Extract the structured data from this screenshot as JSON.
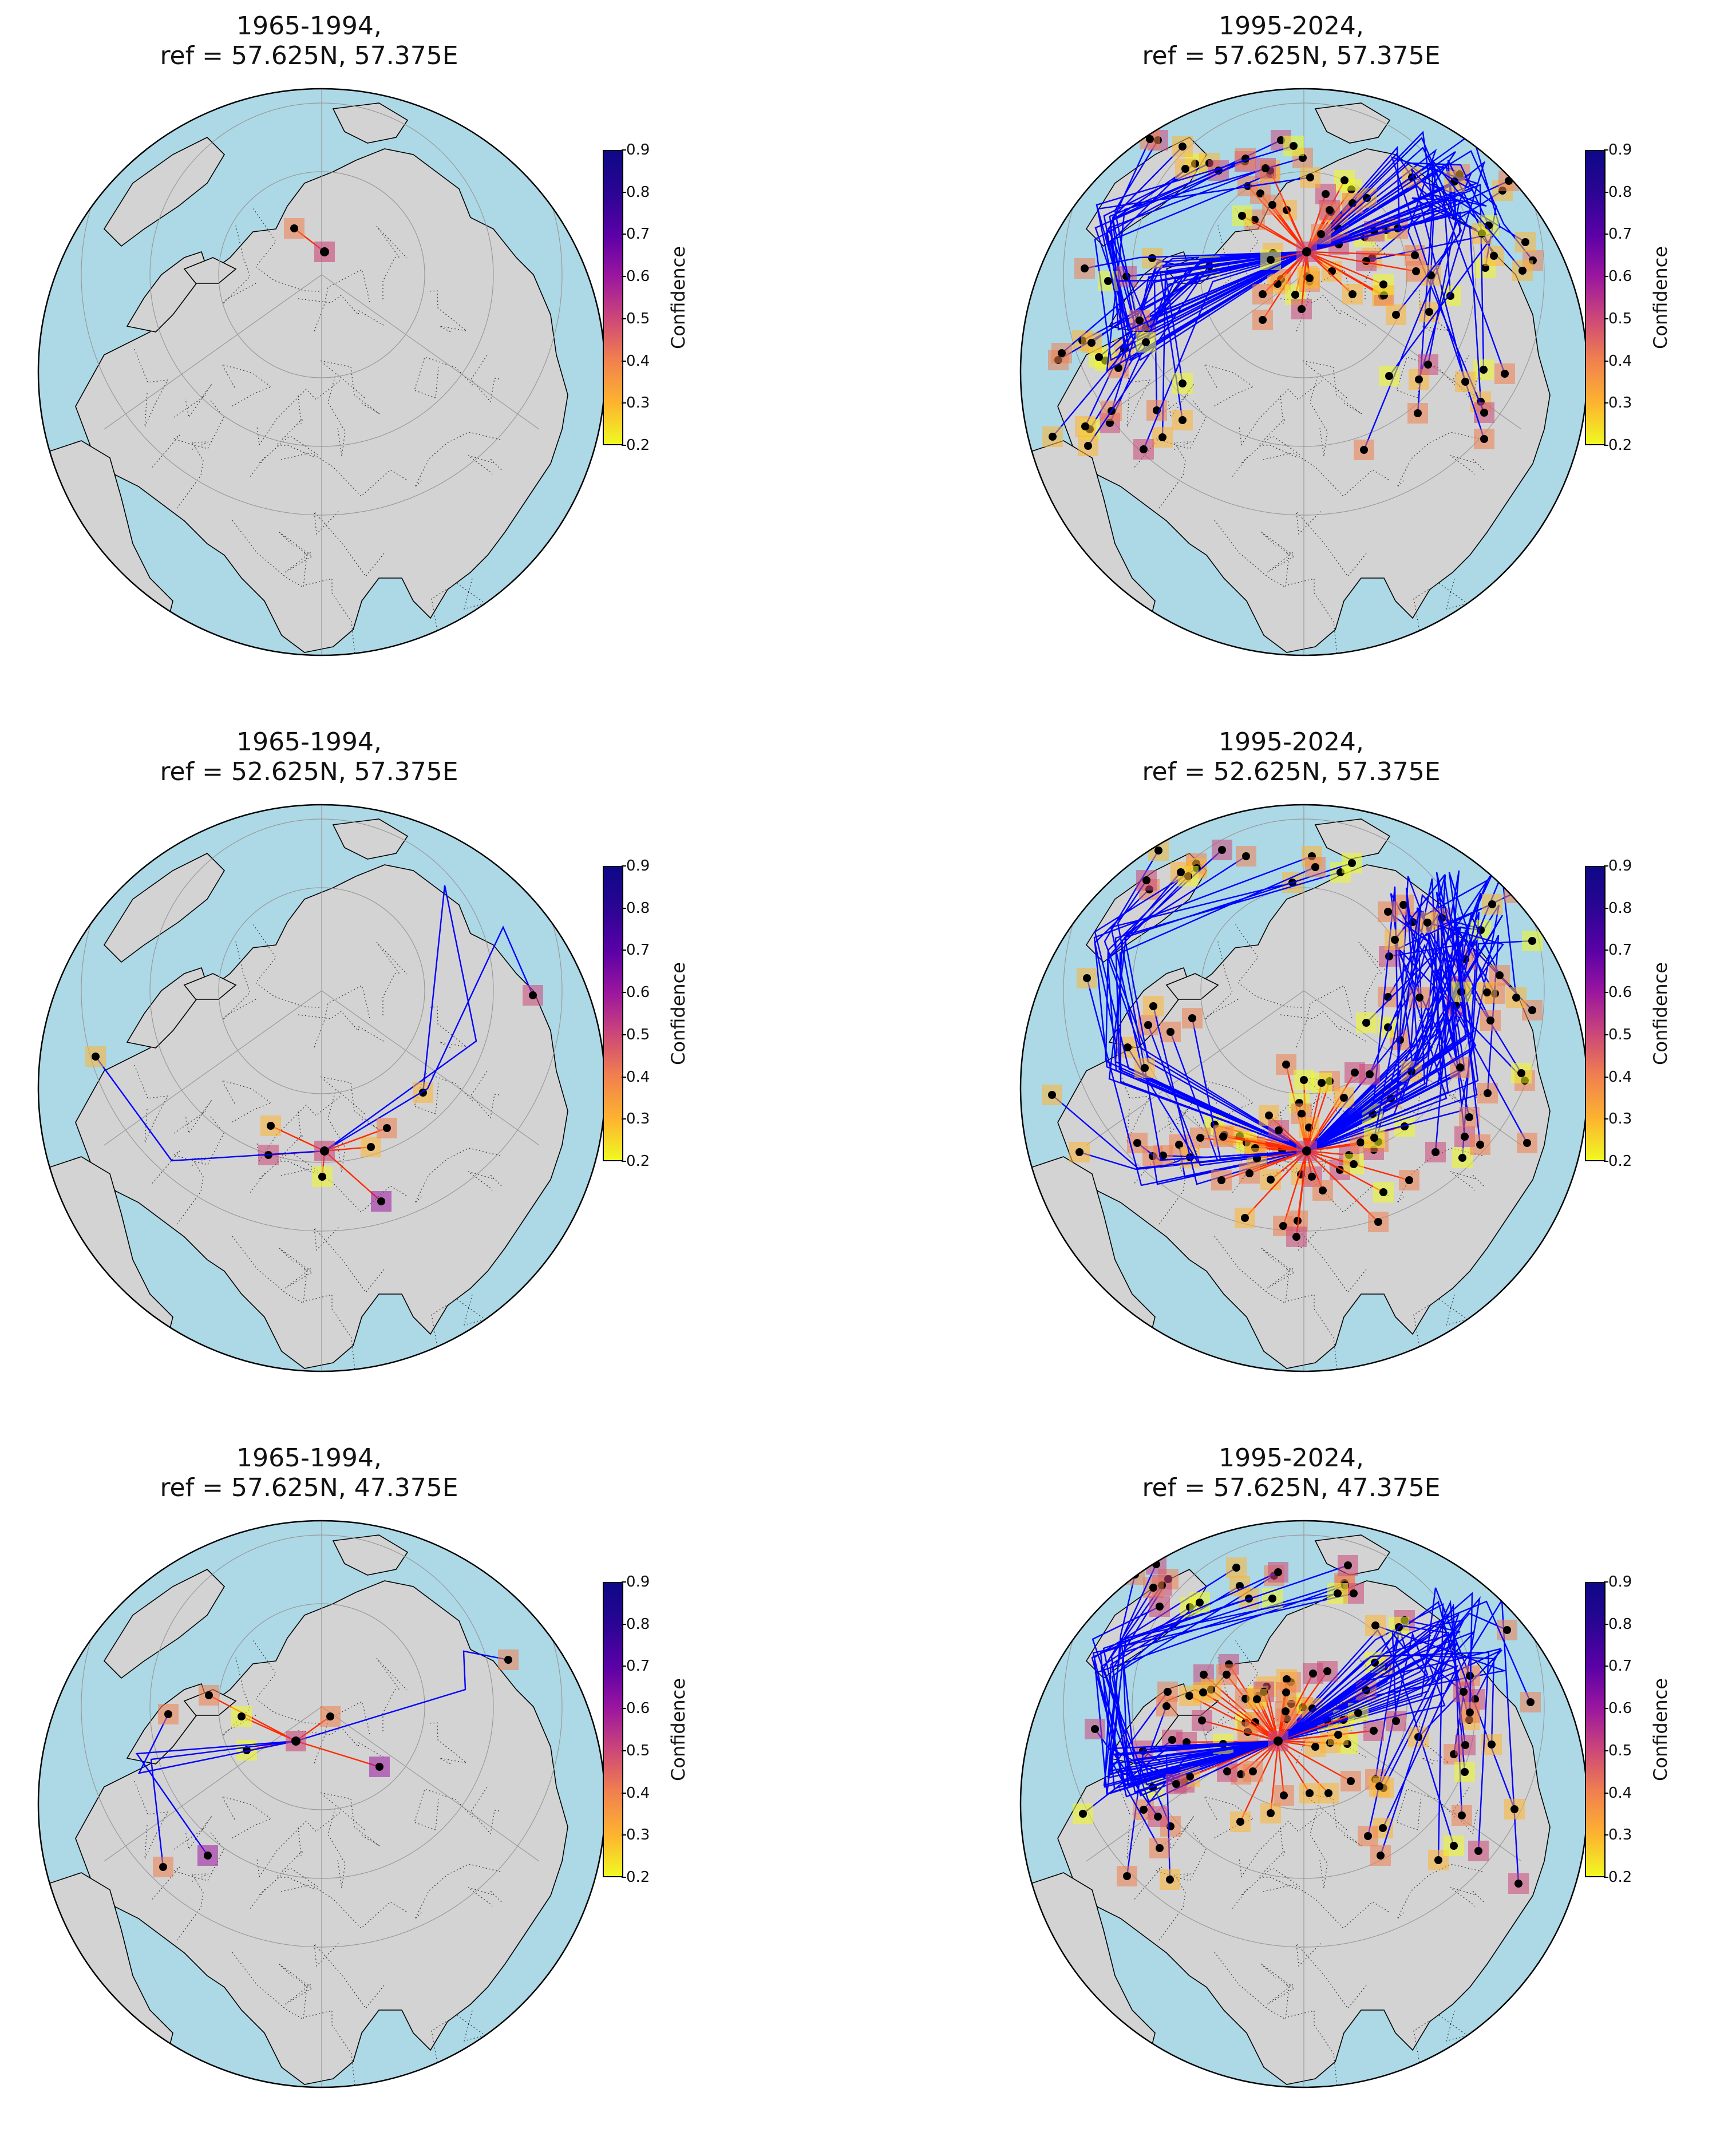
{
  "colorbar": {
    "label": "Confidence",
    "ticks": [
      "0.2",
      "0.3",
      "0.4",
      "0.5",
      "0.6",
      "0.7",
      "0.8",
      "0.9"
    ],
    "colors": [
      "#f0f921",
      "#fdb42f",
      "#f07f4f",
      "#cc4778",
      "#9c179e",
      "#5c01a6",
      "#2a0593",
      "#0d0887"
    ]
  },
  "map_style": {
    "ocean": "#add8e6",
    "land": "#d3d3d3",
    "negative_path": "#0000ff",
    "positive_path": "#ff2a00"
  },
  "panels": [
    {
      "title_line1": "1965-1994,",
      "title_line2": "ref = 57.625N, 57.375E",
      "activity": "sparse"
    },
    {
      "title_line1": "1995-2024,",
      "title_line2": "ref = 57.625N, 57.375E",
      "activity": "dense"
    },
    {
      "title_line1": "1965-1994,",
      "title_line2": "ref = 52.625N, 57.375E",
      "activity": "moderate"
    },
    {
      "title_line1": "1995-2024,",
      "title_line2": "ref = 52.625N, 57.375E",
      "activity": "dense"
    },
    {
      "title_line1": "1965-1994,",
      "title_line2": "ref = 57.625N, 47.375E",
      "activity": "moderate"
    },
    {
      "title_line1": "1995-2024,",
      "title_line2": "ref = 57.625N, 47.375E",
      "activity": "dense"
    }
  ]
}
